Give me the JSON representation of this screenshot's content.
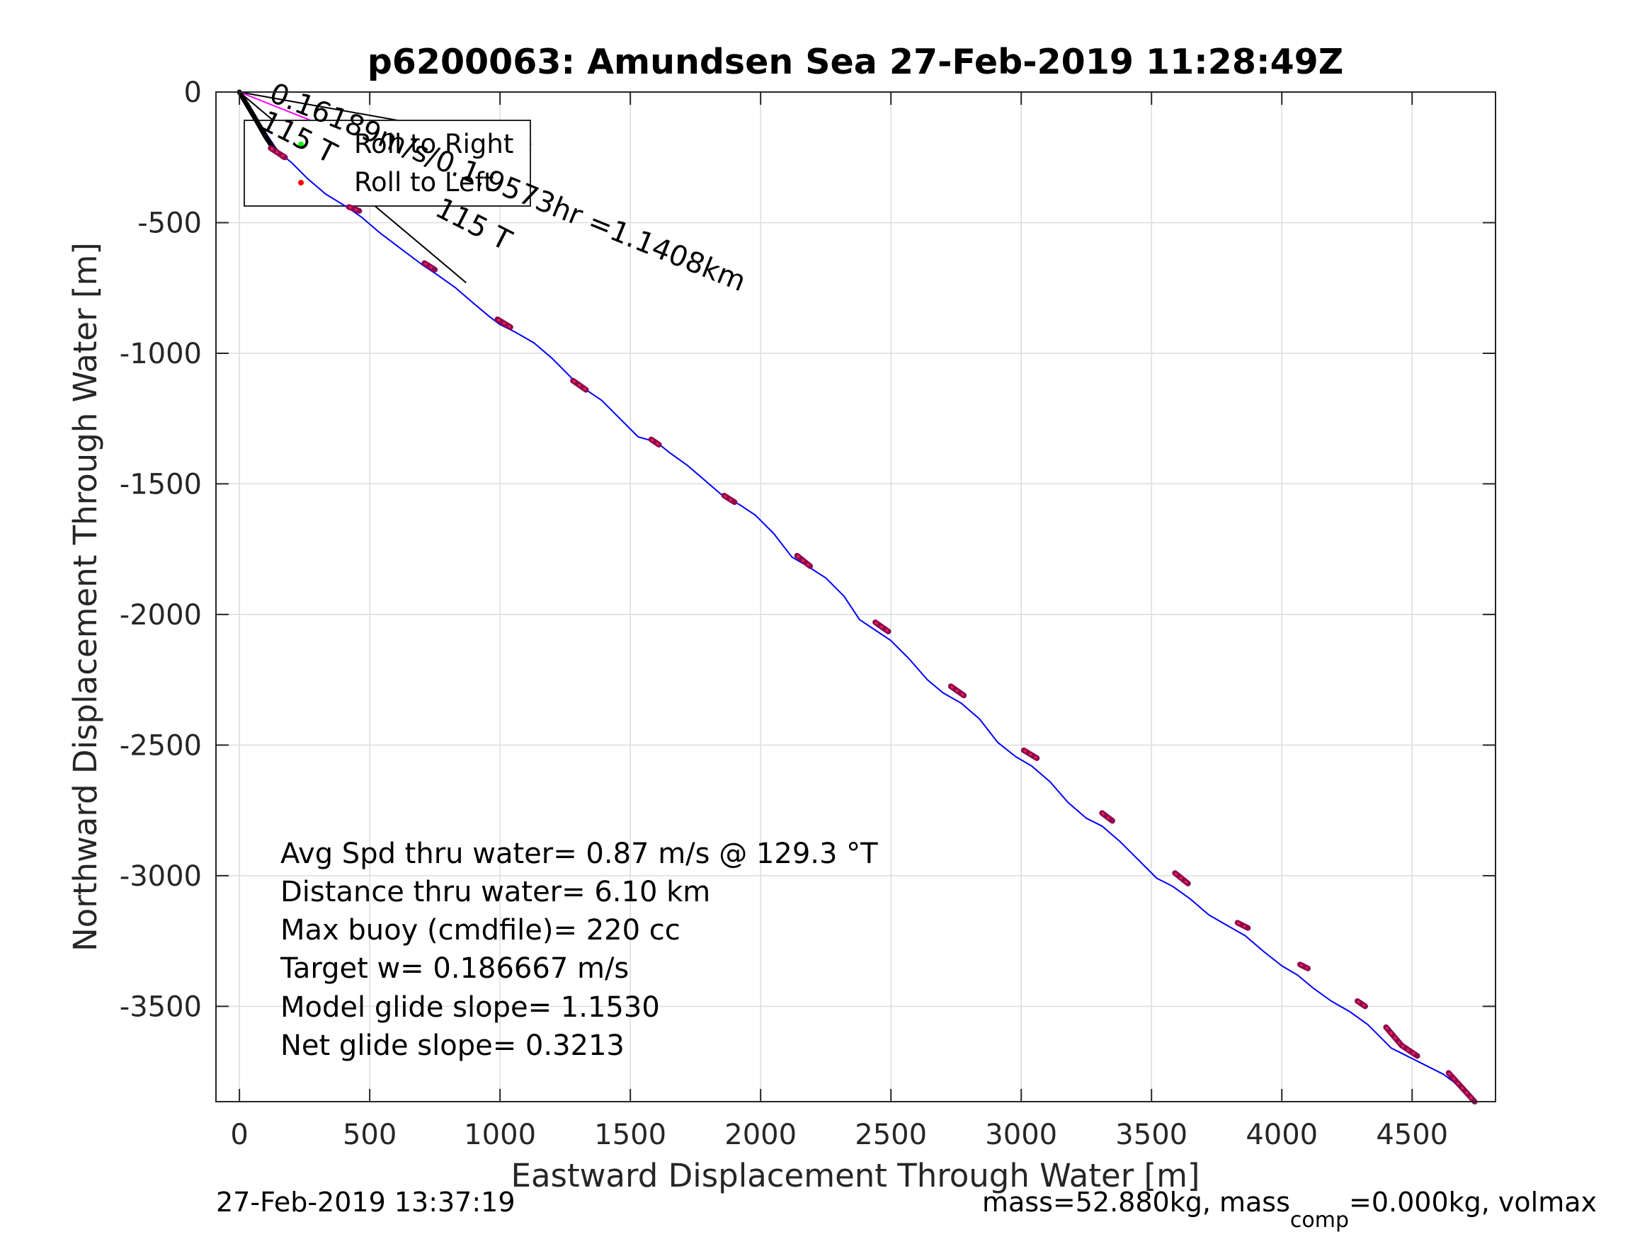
{
  "chart_data": {
    "type": "line",
    "title": "p6200063: Amundsen Sea 27-Feb-2019 11:28:49Z",
    "xlabel": "Eastward Displacement Through Water [m]",
    "ylabel": "Northward Displacement Through Water [m]",
    "xlim": [
      -90,
      4820
    ],
    "ylim": [
      -3865,
      0
    ],
    "xticks": [
      0,
      500,
      1000,
      1500,
      2000,
      2500,
      3000,
      3500,
      4000,
      4500
    ],
    "yticks": [
      0,
      -500,
      -1000,
      -1500,
      -2000,
      -2500,
      -3000,
      -3500
    ],
    "grid": true,
    "legend": {
      "placement": "top-left",
      "entries": [
        {
          "label": "Roll to Right",
          "color": "#00ff00"
        },
        {
          "label": "Roll to Left",
          "color": "#ff0000"
        }
      ]
    },
    "series": [
      {
        "color": "#0000ff",
        "x": [
          0,
          60,
          110,
          150,
          200,
          260,
          330,
          420,
          470,
          540,
          620,
          700,
          760,
          830,
          900,
          960,
          1000,
          1060,
          1130,
          1200,
          1280,
          1330,
          1390,
          1460,
          1530,
          1600,
          1650,
          1720,
          1790,
          1860,
          1920,
          1980,
          2050,
          2120,
          2180,
          2250,
          2320,
          2380,
          2440,
          2500,
          2570,
          2640,
          2700,
          2770,
          2840,
          2910,
          2980,
          3040,
          3110,
          3180,
          3250,
          3310,
          3380,
          3450,
          3520,
          3580,
          3650,
          3720,
          3790,
          3860,
          3930,
          4000,
          4060,
          4120,
          4190,
          4260,
          4330,
          4380,
          4420,
          4460,
          4500,
          4560,
          4620,
          4660,
          4700,
          4730
        ],
        "y": [
          0,
          -90,
          -170,
          -230,
          -270,
          -330,
          -390,
          -445,
          -480,
          -540,
          -600,
          -660,
          -700,
          -750,
          -810,
          -860,
          -890,
          -920,
          -960,
          -1020,
          -1100,
          -1140,
          -1180,
          -1250,
          -1320,
          -1340,
          -1380,
          -1430,
          -1490,
          -1550,
          -1580,
          -1620,
          -1690,
          -1780,
          -1815,
          -1860,
          -1930,
          -2020,
          -2060,
          -2100,
          -2170,
          -2250,
          -2300,
          -2340,
          -2400,
          -2490,
          -2545,
          -2580,
          -2640,
          -2720,
          -2780,
          -2810,
          -2870,
          -2940,
          -3010,
          -3040,
          -3090,
          -3150,
          -3190,
          -3230,
          -3290,
          -3345,
          -3380,
          -3430,
          -3480,
          -3520,
          -3570,
          -3620,
          -3660,
          -3680,
          -3700,
          -3730,
          -3760,
          -3790,
          -3830,
          -3865
        ]
      },
      {
        "color": "#000000",
        "x": [
          0,
          60,
          100,
          130,
          150,
          170
        ],
        "y": [
          0,
          -100,
          -170,
          -215,
          -235,
          -250
        ]
      }
    ],
    "reference_lines": [
      {
        "color": "#000000",
        "x": [
          0,
          1120
        ],
        "y": [
          0,
          -200
        ]
      },
      {
        "color": "#000000",
        "x": [
          0,
          870
        ],
        "y": [
          0,
          -730
        ]
      },
      {
        "color": "#ff00ff",
        "x": [
          0,
          1060
        ],
        "y": [
          0,
          -420
        ]
      }
    ],
    "marker_segments": [
      {
        "x": [
          120,
          175
        ],
        "y": [
          -215,
          -250
        ]
      },
      {
        "x": [
          420,
          460
        ],
        "y": [
          -440,
          -455
        ]
      },
      {
        "x": [
          710,
          750
        ],
        "y": [
          -655,
          -680
        ]
      },
      {
        "x": [
          990,
          1040
        ],
        "y": [
          -870,
          -900
        ]
      },
      {
        "x": [
          1280,
          1330
        ],
        "y": [
          -1105,
          -1140
        ]
      },
      {
        "x": [
          1580,
          1610
        ],
        "y": [
          -1330,
          -1350
        ]
      },
      {
        "x": [
          1860,
          1900
        ],
        "y": [
          -1545,
          -1570
        ]
      },
      {
        "x": [
          2140,
          2190
        ],
        "y": [
          -1775,
          -1815
        ]
      },
      {
        "x": [
          2440,
          2490
        ],
        "y": [
          -2030,
          -2065
        ]
      },
      {
        "x": [
          2730,
          2780
        ],
        "y": [
          -2275,
          -2310
        ]
      },
      {
        "x": [
          3010,
          3060
        ],
        "y": [
          -2520,
          -2550
        ]
      },
      {
        "x": [
          3310,
          3350
        ],
        "y": [
          -2760,
          -2790
        ]
      },
      {
        "x": [
          3590,
          3640
        ],
        "y": [
          -2990,
          -3030
        ]
      },
      {
        "x": [
          3830,
          3870
        ],
        "y": [
          -3180,
          -3200
        ]
      },
      {
        "x": [
          4070,
          4100
        ],
        "y": [
          -3340,
          -3355
        ]
      },
      {
        "x": [
          4290,
          4320
        ],
        "y": [
          -3480,
          -3500
        ]
      },
      {
        "x": [
          4400,
          4460
        ],
        "y": [
          -3580,
          -3650
        ]
      },
      {
        "x": [
          4460,
          4520
        ],
        "y": [
          -3650,
          -3690
        ]
      },
      {
        "x": [
          4640,
          4740
        ],
        "y": [
          -3755,
          -3865
        ]
      }
    ],
    "annotations": [
      {
        "text": "0.16189m/s/0.1.9573hr =1.1408km"
      },
      {
        "text": "115 T"
      },
      {
        "text": "115 T"
      }
    ],
    "notes": [
      "Avg Spd thru water=  0.87 m/s @ 129.3 °T",
      "Distance thru water=  6.10 km",
      "Max buoy (cmdfile)= 220 cc",
      "Target w= 0.186667 m/s",
      "Model glide slope= 1.1530",
      "Net glide slope= 0.3213"
    ],
    "footer_left": "27-Feb-2019 13:37:19",
    "footer_right_prefix": "mass=52.880kg, mass",
    "footer_right_sub": "comp",
    "footer_right_suffix": "=0.000kg, volmax"
  }
}
